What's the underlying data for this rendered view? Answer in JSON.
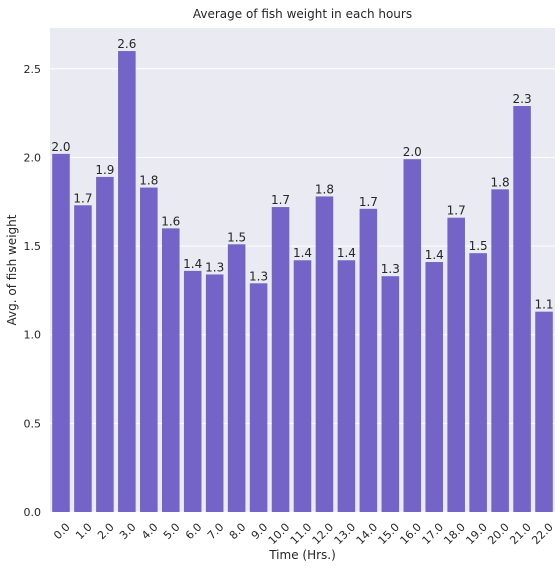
{
  "chart_data": {
    "type": "bar",
    "title": "Average of fish weight in each hours",
    "xlabel": "Time (Hrs.)",
    "ylabel": "Avg. of fish weight",
    "categories": [
      "0.0",
      "1.0",
      "2.0",
      "3.0",
      "4.0",
      "5.0",
      "6.0",
      "7.0",
      "8.0",
      "9.0",
      "10.0",
      "11.0",
      "12.0",
      "13.0",
      "14.0",
      "15.0",
      "16.0",
      "17.0",
      "18.0",
      "19.0",
      "20.0",
      "21.0",
      "22.0"
    ],
    "values": [
      2.02,
      1.73,
      1.89,
      2.6,
      1.83,
      1.6,
      1.36,
      1.34,
      1.51,
      1.29,
      1.72,
      1.42,
      1.78,
      1.42,
      1.71,
      1.33,
      1.99,
      1.41,
      1.66,
      1.46,
      1.82,
      2.29,
      1.13
    ],
    "data_labels": [
      "2.0",
      "1.7",
      "1.9",
      "2.6",
      "1.8",
      "1.6",
      "1.4",
      "1.3",
      "1.5",
      "1.3",
      "1.7",
      "1.4",
      "1.8",
      "1.4",
      "1.7",
      "1.3",
      "2.0",
      "1.4",
      "1.7",
      "1.5",
      "1.8",
      "2.3",
      "1.1"
    ],
    "yticks": [
      "0.0",
      "0.5",
      "1.0",
      "1.5",
      "2.0",
      "2.5"
    ],
    "ylim": [
      0,
      2.73
    ],
    "grid": true,
    "colors": {
      "bar": "#7464c8",
      "plot_background": "#eaeaf2",
      "grid": "#ffffff",
      "text": "#262626"
    }
  }
}
